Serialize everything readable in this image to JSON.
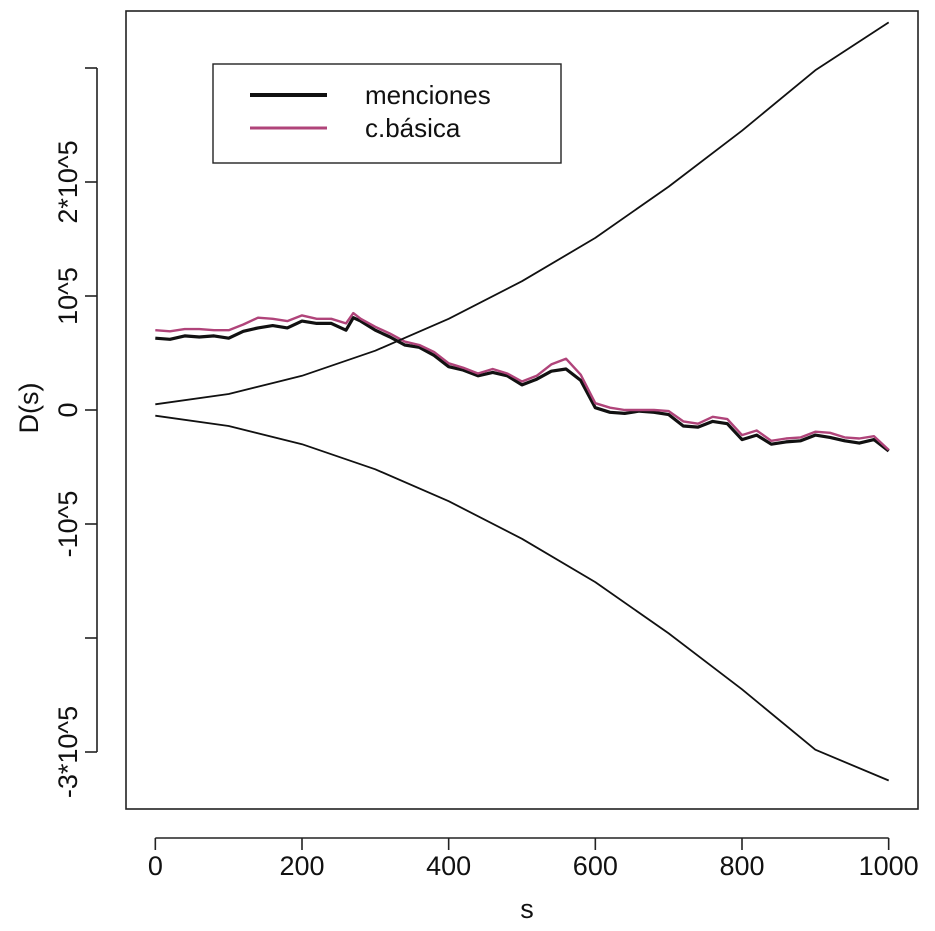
{
  "chart_data": {
    "type": "line",
    "xlabel": "s",
    "ylabel": "D(s)",
    "xlim": [
      -40,
      1040
    ],
    "ylim": [
      -350000,
      350000
    ],
    "x_ticks": [
      {
        "value": 0,
        "label": "0"
      },
      {
        "value": 200,
        "label": "200"
      },
      {
        "value": 400,
        "label": "400"
      },
      {
        "value": 600,
        "label": "600"
      },
      {
        "value": 800,
        "label": "800"
      },
      {
        "value": 1000,
        "label": "1000"
      }
    ],
    "y_ticks": [
      {
        "value": -300000,
        "label": "-3*10^5"
      },
      {
        "value": -200000,
        "label": ""
      },
      {
        "value": -100000,
        "label": "-10^5"
      },
      {
        "value": 0,
        "label": "0"
      },
      {
        "value": 100000,
        "label": "10^5"
      },
      {
        "value": 200000,
        "label": "2*10^5"
      },
      {
        "value": 300000,
        "label": ""
      }
    ],
    "legend": {
      "position": "top-left",
      "entries": [
        {
          "label": "menciones",
          "color": "#111111"
        },
        {
          "label": "c.básica",
          "color": "#b0447a"
        }
      ]
    },
    "series": [
      {
        "name": "menciones",
        "color": "#111111",
        "x": [
          0,
          20,
          40,
          60,
          80,
          100,
          120,
          140,
          160,
          180,
          200,
          220,
          240,
          260,
          270,
          280,
          300,
          320,
          340,
          360,
          380,
          400,
          420,
          440,
          460,
          480,
          500,
          520,
          540,
          560,
          580,
          600,
          620,
          640,
          660,
          680,
          700,
          720,
          740,
          760,
          780,
          800,
          820,
          840,
          860,
          880,
          900,
          920,
          940,
          960,
          980,
          1000
        ],
        "y": [
          63000,
          62000,
          65000,
          64000,
          65000,
          63000,
          69000,
          72000,
          74000,
          72000,
          78000,
          76000,
          76000,
          70000,
          81000,
          78000,
          70000,
          64000,
          57000,
          55000,
          48000,
          38000,
          35000,
          30000,
          33000,
          30000,
          22000,
          27000,
          34000,
          36000,
          26000,
          2000,
          -2000,
          -3000,
          -1000,
          -2000,
          -4000,
          -14000,
          -15000,
          -10000,
          -12000,
          -26000,
          -22000,
          -30000,
          -28000,
          -27000,
          -22000,
          -24000,
          -27000,
          -29000,
          -26000,
          -36000
        ]
      },
      {
        "name": "c.básica",
        "color": "#b0447a",
        "x": [
          0,
          20,
          40,
          60,
          80,
          100,
          120,
          140,
          160,
          180,
          200,
          220,
          240,
          260,
          270,
          280,
          300,
          320,
          340,
          360,
          380,
          400,
          420,
          440,
          460,
          480,
          500,
          520,
          540,
          560,
          580,
          600,
          620,
          640,
          660,
          680,
          700,
          720,
          740,
          760,
          780,
          800,
          820,
          840,
          860,
          880,
          900,
          920,
          940,
          960,
          980,
          1000
        ],
        "y": [
          70000,
          69000,
          71000,
          71000,
          70000,
          70000,
          75000,
          81000,
          80000,
          78000,
          83000,
          80000,
          80000,
          76000,
          85000,
          80000,
          73000,
          67000,
          60000,
          57000,
          51000,
          41000,
          37000,
          32000,
          36000,
          32000,
          25000,
          30000,
          40000,
          45000,
          31000,
          6000,
          2000,
          0,
          0,
          0,
          -1000,
          -10000,
          -12000,
          -6000,
          -8000,
          -22000,
          -18000,
          -27000,
          -25000,
          -24000,
          -19000,
          -20000,
          -24000,
          -25000,
          -23000,
          -35000
        ]
      },
      {
        "name": "",
        "color": "#111111",
        "x": [
          0,
          100,
          200,
          300,
          400,
          500,
          600,
          700,
          800,
          900,
          1000
        ],
        "y": [
          5000,
          14000,
          30000,
          52000,
          80000,
          113000,
          151000,
          196000,
          245000,
          298000,
          340000
        ]
      },
      {
        "name": "",
        "color": "#111111",
        "x": [
          0,
          100,
          200,
          300,
          400,
          500,
          600,
          700,
          800,
          900,
          1000
        ],
        "y": [
          -5000,
          -14000,
          -30000,
          -52000,
          -80000,
          -113000,
          -151000,
          -196000,
          -245000,
          -298000,
          -325000
        ]
      }
    ]
  }
}
